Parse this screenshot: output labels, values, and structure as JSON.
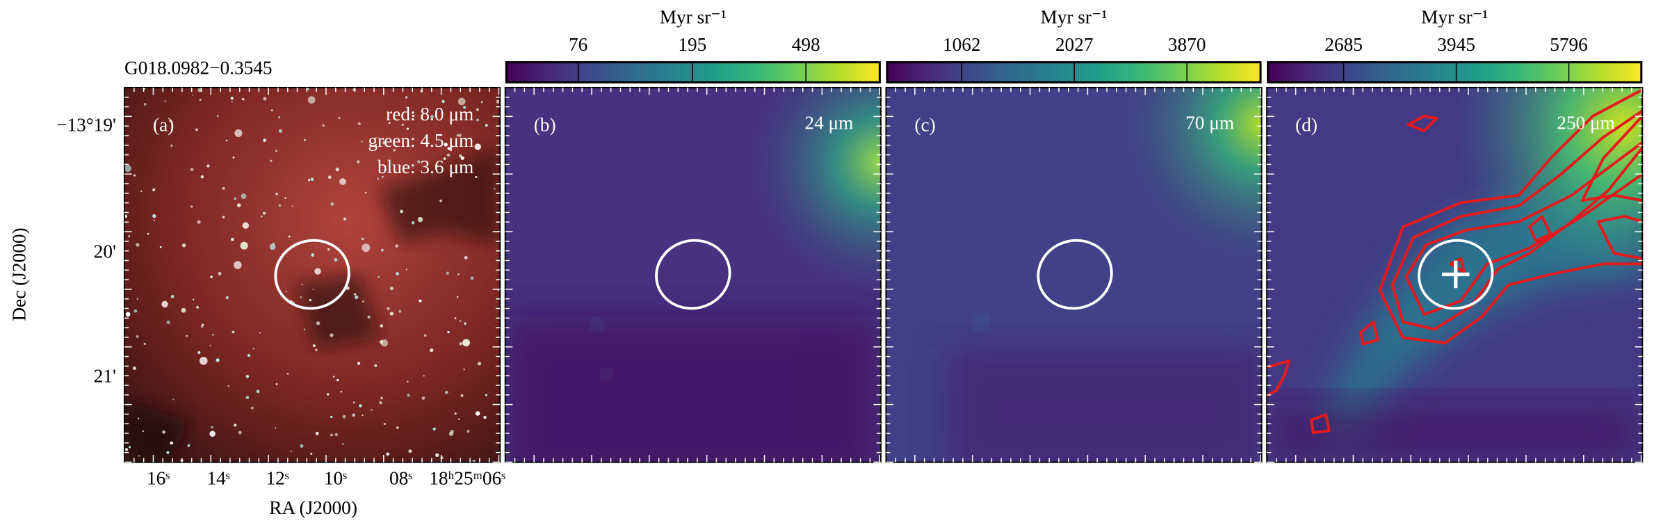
{
  "chart_data": {
    "type": "image-panels",
    "title": "G018.0982−0.3545",
    "ylabel": "Dec (J2000)",
    "yticks": [
      "−13°19'",
      "20'",
      "21'"
    ],
    "xlabel": "RA (J2000)",
    "xticks": [
      "16ˢ",
      "14ˢ",
      "12ˢ",
      "10ˢ",
      "08ˢ",
      "18ʰ25ᵐ06ˢ"
    ],
    "panels": [
      {
        "label": "(a)",
        "bands": [
          "red: 8.0 μm",
          "green: 4.5 μm",
          "blue: 3.6 μm"
        ]
      },
      {
        "label": "(b)",
        "band": "24 μm",
        "colorbar": {
          "label": "Myr sr⁻¹",
          "log": true,
          "lim": [
            42,
            916
          ],
          "ticks": [
            76,
            195,
            498
          ]
        }
      },
      {
        "label": "(c)",
        "band": "70 μm",
        "colorbar": {
          "label": "Myr sr⁻¹",
          "log": true,
          "lim": [
            692,
            5906
          ],
          "ticks": [
            1062,
            2027,
            3870
          ]
        }
      },
      {
        "label": "(d)",
        "band": "250 μm",
        "colorbar": {
          "label": "Myr sr⁻¹",
          "log": true,
          "lim": [
            2073,
            7425
          ],
          "ticks": [
            2685,
            3945,
            5796
          ]
        }
      }
    ]
  }
}
